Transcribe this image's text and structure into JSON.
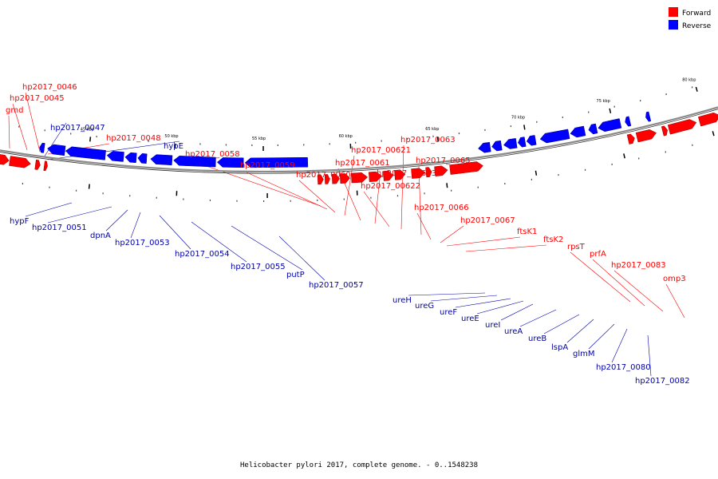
{
  "legend": [
    {
      "label": "Forward",
      "color": "#ff0000"
    },
    {
      "label": "Reverse",
      "color": "#0000ff"
    }
  ],
  "caption": "Helicobacter pylori 2017, complete genome. - 0..1548238",
  "colors": {
    "forward": "#ff0000",
    "reverse": "#0000ff",
    "backbone": "#8a8a8a"
  },
  "ticks": [
    {
      "label": "45 kbp"
    },
    {
      "label": "50 kbp"
    },
    {
      "label": "55 kbp"
    },
    {
      "label": "60 kbp"
    },
    {
      "label": "65 kbp"
    },
    {
      "label": "70 kbp"
    },
    {
      "label": "75 kbp"
    },
    {
      "label": "80 kbp"
    }
  ],
  "genes": {
    "forward": [
      "gmd",
      "hp2017_0045",
      "hp2017_0046",
      "hp2017_0048",
      "hp2017_0058",
      "hp2017_0059",
      "hp2017_0060",
      "hp2017_00621",
      "hp2017_0061",
      "hp2017_00623",
      "hp2017_00622",
      "hp2017_0063",
      "hp2017_0065",
      "hp2017_0066",
      "hp2017_0067",
      "ftsK1",
      "ftsK2",
      "rpsT",
      "prfA",
      "hp2017_0083",
      "omp3"
    ],
    "reverse": [
      "hp2017_0047",
      "hypE",
      "hypF",
      "hp2017_0051",
      "dpnA",
      "hp2017_0053",
      "hp2017_0054",
      "hp2017_0055",
      "putP",
      "hp2017_0057",
      "ureH",
      "ureG",
      "ureF",
      "ureE",
      "ureI",
      "ureA",
      "ureB",
      "lspA",
      "glmM",
      "hp2017_0080",
      "hp2017_0082"
    ]
  }
}
